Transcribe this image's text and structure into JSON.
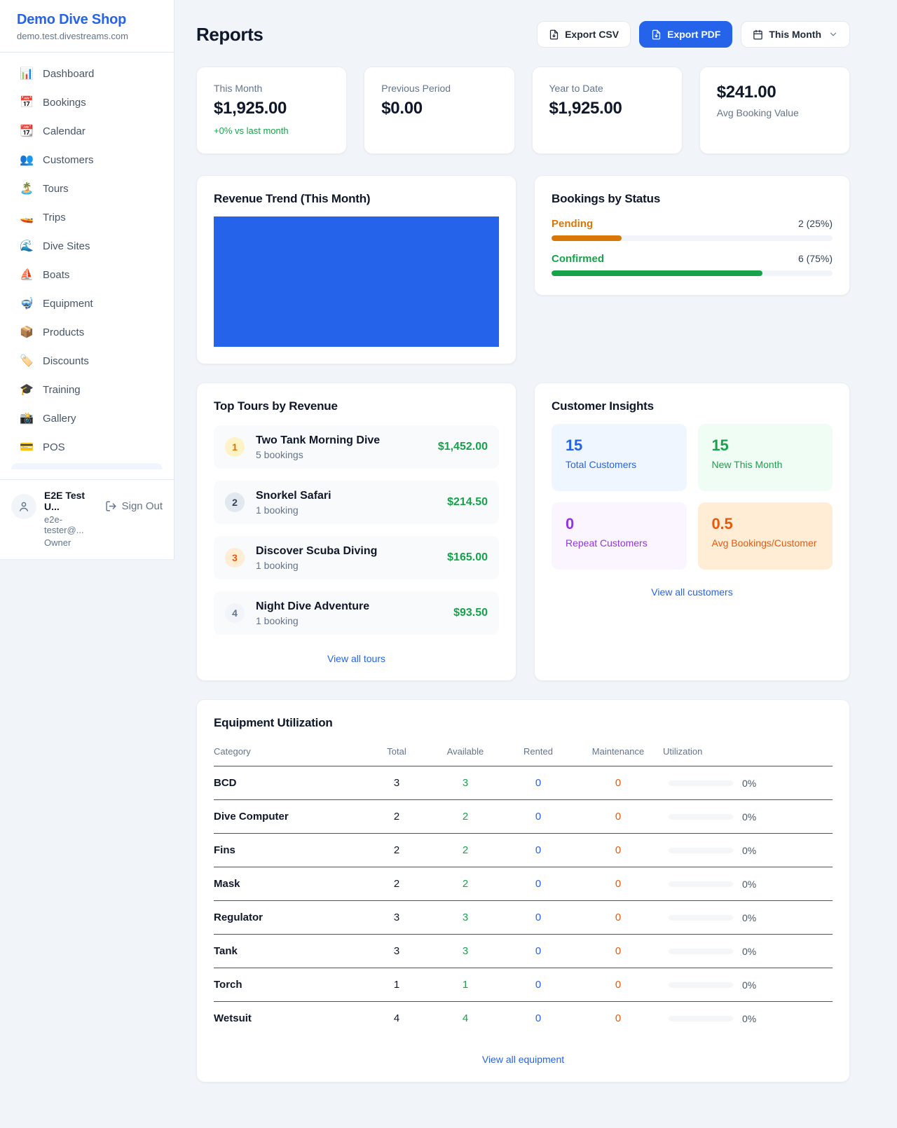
{
  "theme": {
    "accent": "#2563eb",
    "green": "#16a34a",
    "pending_orange": "#d97706",
    "maintenance_orange": "#ea580c",
    "page_bg": "#f1f5f9"
  },
  "sidebar": {
    "shop_name": "Demo Dive Shop",
    "domain": "demo.test.divestreams.com",
    "items": [
      {
        "icon_name": "bar-chart-icon",
        "icon": "📊",
        "label": "Dashboard"
      },
      {
        "icon_name": "calendar-icon",
        "icon": "📅",
        "label": "Bookings"
      },
      {
        "icon_name": "tear-calendar-icon",
        "icon": "📆",
        "label": "Calendar"
      },
      {
        "icon_name": "people-icon",
        "icon": "👥",
        "label": "Customers"
      },
      {
        "icon_name": "island-icon",
        "icon": "🏝️",
        "label": "Tours"
      },
      {
        "icon_name": "speedboat-icon",
        "icon": "🚤",
        "label": "Trips"
      },
      {
        "icon_name": "wave-icon",
        "icon": "🌊",
        "label": "Dive Sites"
      },
      {
        "icon_name": "sailboat-icon",
        "icon": "⛵",
        "label": "Boats"
      },
      {
        "icon_name": "diving-mask-icon",
        "icon": "🤿",
        "label": "Equipment"
      },
      {
        "icon_name": "package-icon",
        "icon": "📦",
        "label": "Products"
      },
      {
        "icon_name": "label-tag-icon",
        "icon": "🏷️",
        "label": "Discounts"
      },
      {
        "icon_name": "graduation-cap-icon",
        "icon": "🎓",
        "label": "Training"
      },
      {
        "icon_name": "camera-icon",
        "icon": "📸",
        "label": "Gallery"
      },
      {
        "icon_name": "credit-card-icon",
        "icon": "💳",
        "label": "POS"
      }
    ],
    "user": {
      "name": "E2E Test U...",
      "email": "e2e-tester@...",
      "role": "Owner",
      "sign_out": "Sign Out"
    }
  },
  "header": {
    "title": "Reports",
    "export_csv": "Export CSV",
    "export_pdf": "Export PDF",
    "period": "This Month"
  },
  "stats": [
    {
      "label": "This Month",
      "value": "$1,925.00",
      "delta": "+0% vs last month"
    },
    {
      "label": "Previous Period",
      "value": "$0.00"
    },
    {
      "label": "Year to Date",
      "value": "$1,925.00"
    },
    {
      "value": "$241.00",
      "label": "Avg Booking Value"
    }
  ],
  "revenue_trend": {
    "title": "Revenue Trend (This Month)",
    "fill_color": "#2563eb"
  },
  "bookings_by_status": {
    "title": "Bookings by Status",
    "rows": [
      {
        "label": "Pending",
        "value": "2 (25%)",
        "pct": 25,
        "color": "#d97706"
      },
      {
        "label": "Confirmed",
        "value": "6 (75%)",
        "pct": 75,
        "color": "#16a34a"
      }
    ]
  },
  "top_tours": {
    "title": "Top Tours by Revenue",
    "rows": [
      {
        "rank": "1",
        "name": "Two Tank Morning Dive",
        "bookings": "5 bookings",
        "amount": "$1,452.00",
        "badge_bg": "#fef3c7",
        "badge_color": "#d97706"
      },
      {
        "rank": "2",
        "name": "Snorkel Safari",
        "bookings": "1 booking",
        "amount": "$214.50",
        "badge_bg": "#e2e8f0",
        "badge_color": "#334155"
      },
      {
        "rank": "3",
        "name": "Discover Scuba Diving",
        "bookings": "1 booking",
        "amount": "$165.00",
        "badge_bg": "#ffedd5",
        "badge_color": "#ea580c"
      },
      {
        "rank": "4",
        "name": "Night Dive Adventure",
        "bookings": "1 booking",
        "amount": "$93.50",
        "badge_bg": "#f1f5f9",
        "badge_color": "#64748b"
      }
    ],
    "view_all": "View all tours"
  },
  "customer_insights": {
    "title": "Customer Insights",
    "tiles": [
      {
        "value": "15",
        "label": "Total Customers",
        "color": "#2563eb",
        "bg": "#eff6ff"
      },
      {
        "value": "15",
        "label": "New This Month",
        "color": "#16a34a",
        "bg": "#f0fdf4"
      },
      {
        "value": "0",
        "label": "Repeat Customers",
        "color": "#9333ea",
        "bg": "#faf5ff"
      },
      {
        "value": "0.5",
        "label": "Avg Bookings/Customer",
        "color": "#ea580c",
        "bg": "#ffedd5"
      }
    ],
    "view_all": "View all customers"
  },
  "equipment": {
    "title": "Equipment Utilization",
    "columns": [
      "Category",
      "Total",
      "Available",
      "Rented",
      "Maintenance",
      "Utilization"
    ],
    "value_colors": {
      "available": "#16a34a",
      "rented": "#2563eb",
      "maintenance": "#ea580c"
    },
    "rows": [
      {
        "category": "BCD",
        "total": "3",
        "available": "3",
        "rented": "0",
        "maintenance": "0",
        "utilization": "0%",
        "utilization_pct": 0
      },
      {
        "category": "Dive Computer",
        "total": "2",
        "available": "2",
        "rented": "0",
        "maintenance": "0",
        "utilization": "0%",
        "utilization_pct": 0
      },
      {
        "category": "Fins",
        "total": "2",
        "available": "2",
        "rented": "0",
        "maintenance": "0",
        "utilization": "0%",
        "utilization_pct": 0
      },
      {
        "category": "Mask",
        "total": "2",
        "available": "2",
        "rented": "0",
        "maintenance": "0",
        "utilization": "0%",
        "utilization_pct": 0
      },
      {
        "category": "Regulator",
        "total": "3",
        "available": "3",
        "rented": "0",
        "maintenance": "0",
        "utilization": "0%",
        "utilization_pct": 0
      },
      {
        "category": "Tank",
        "total": "3",
        "available": "3",
        "rented": "0",
        "maintenance": "0",
        "utilization": "0%",
        "utilization_pct": 0
      },
      {
        "category": "Torch",
        "total": "1",
        "available": "1",
        "rented": "0",
        "maintenance": "0",
        "utilization": "0%",
        "utilization_pct": 0
      },
      {
        "category": "Wetsuit",
        "total": "4",
        "available": "4",
        "rented": "0",
        "maintenance": "0",
        "utilization": "0%",
        "utilization_pct": 0
      }
    ],
    "view_all": "View all equipment"
  }
}
